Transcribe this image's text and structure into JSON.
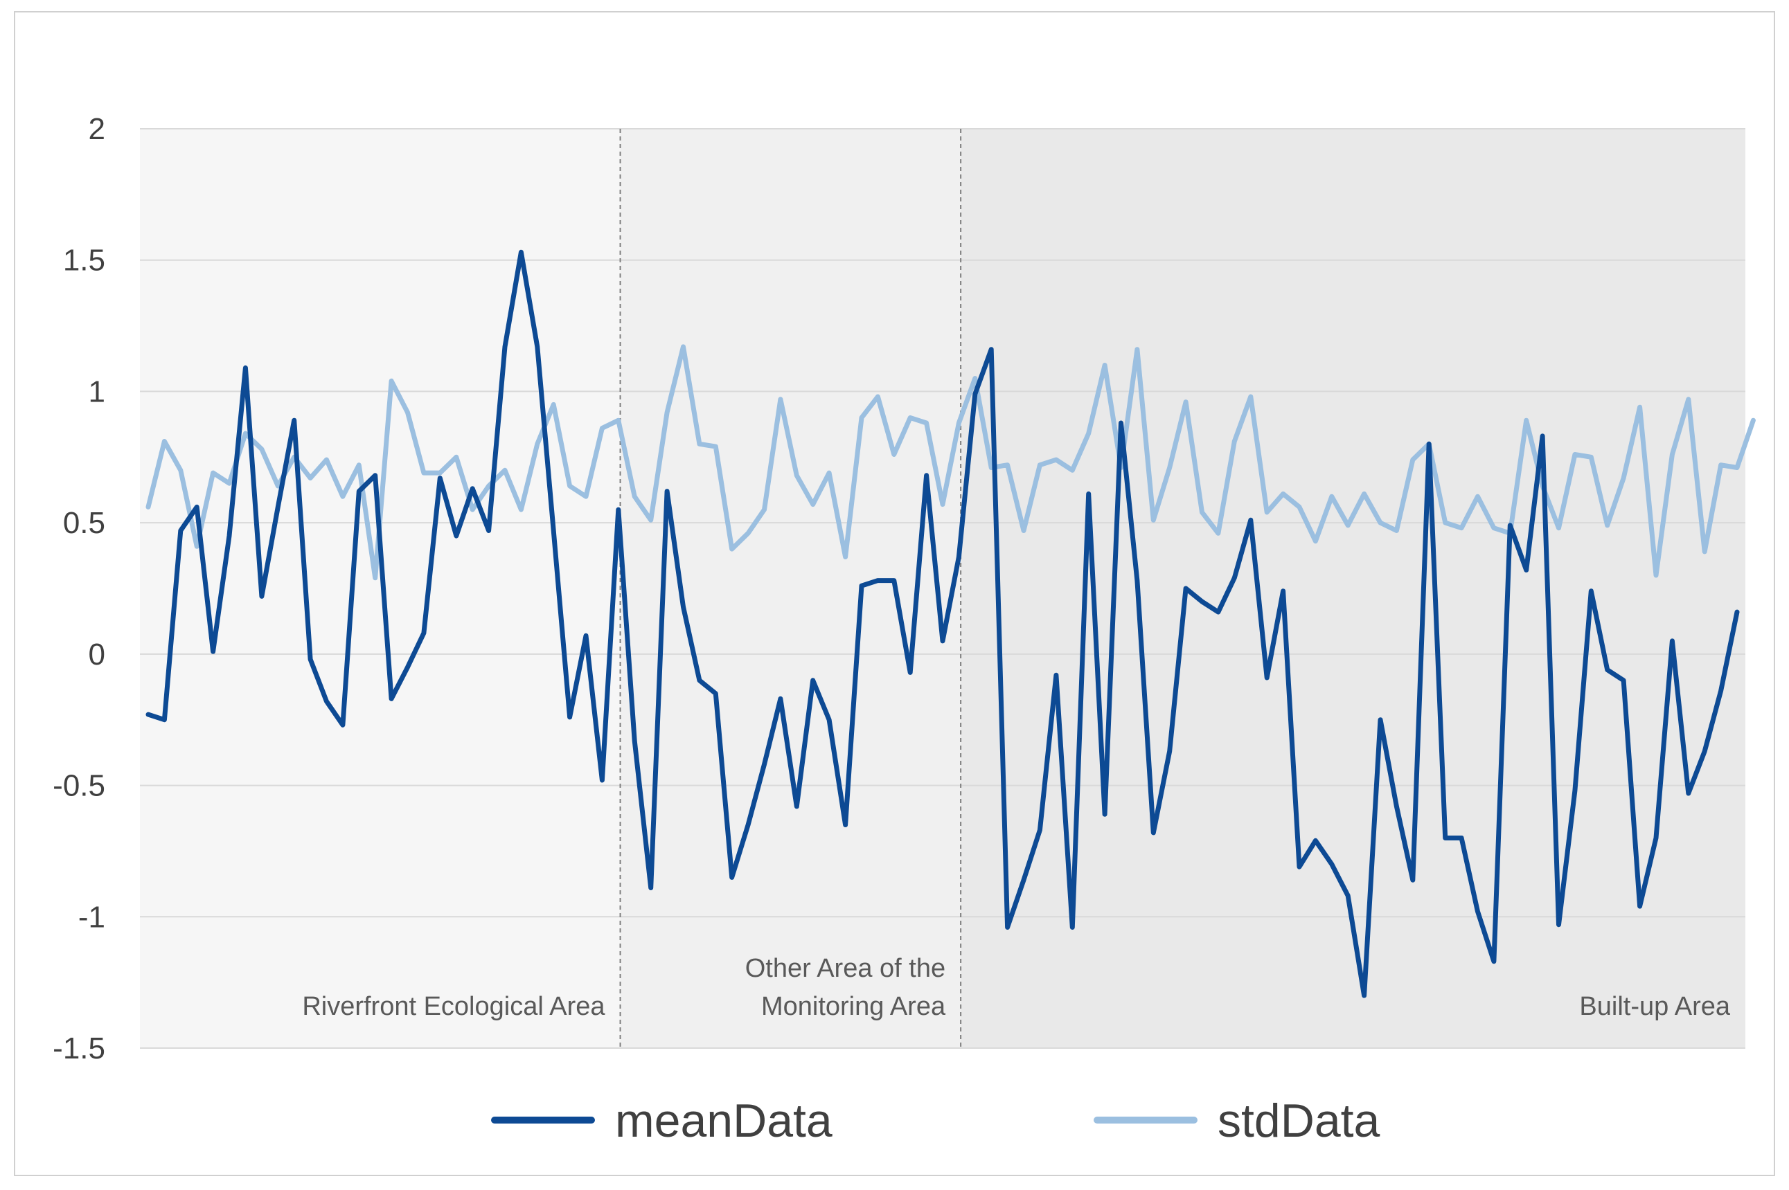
{
  "chart_data": {
    "type": "line",
    "title": "",
    "xlabel": "",
    "ylabel": "",
    "ylim": [
      -1.5,
      2
    ],
    "yticks": [
      2,
      1.5,
      1,
      0.5,
      0,
      -0.5,
      -1,
      -1.5
    ],
    "ytick_labels": [
      "2",
      "1.5",
      "1",
      "0.5",
      "0",
      "-0.5",
      "-1",
      "-1.5"
    ],
    "grid": true,
    "legend": "bottom",
    "regions": [
      {
        "name": "riverfront",
        "label_lines": [
          "Riverfront Ecological Area"
        ],
        "start": 0,
        "end": 29,
        "shade": "#f6f6f6"
      },
      {
        "name": "other",
        "label_lines": [
          "Other Area of the",
          "Monitoring Area"
        ],
        "start": 29,
        "end": 50,
        "shade": "#f0f0f0"
      },
      {
        "name": "builtup",
        "label_lines": [
          "Built-up Area"
        ],
        "start": 50,
        "end": 100,
        "shade": "#e9e9e9"
      }
    ],
    "series": [
      {
        "name": "meanData",
        "color": "#0d4a94",
        "values": [
          -0.23,
          -0.25,
          0.47,
          0.56,
          0.01,
          0.45,
          1.09,
          0.22,
          0.56,
          0.89,
          -0.02,
          -0.18,
          -0.27,
          0.62,
          0.68,
          -0.17,
          -0.05,
          0.08,
          0.67,
          0.45,
          0.63,
          0.47,
          1.17,
          1.53,
          1.17,
          0.47,
          -0.24,
          0.07,
          -0.48,
          0.55,
          -0.33,
          -0.89,
          0.62,
          0.18,
          -0.1,
          -0.15,
          -0.85,
          -0.65,
          -0.42,
          -0.17,
          -0.58,
          -0.1,
          -0.25,
          -0.65,
          0.26,
          0.28,
          0.28,
          -0.07,
          0.68,
          0.05,
          0.37,
          0.99,
          1.16,
          -1.04,
          -0.86,
          -0.67,
          -0.08,
          -1.04,
          0.61,
          -0.61,
          0.88,
          0.28,
          -0.68,
          -0.37,
          0.25,
          0.2,
          0.16,
          0.29,
          0.51,
          -0.09,
          0.24,
          -0.81,
          -0.71,
          -0.8,
          -0.92,
          -1.3,
          -0.25,
          -0.58,
          -0.86,
          0.8,
          -0.7,
          -0.7,
          -0.98,
          -1.17,
          0.49,
          0.32,
          0.83,
          -1.03,
          -0.52,
          0.24,
          -0.06,
          -0.1,
          -0.96,
          -0.7,
          0.05,
          -0.53,
          -0.37,
          -0.14,
          0.16
        ]
      },
      {
        "name": "stdData",
        "color": "#9bbfe0",
        "values": [
          0.56,
          0.81,
          0.7,
          0.41,
          0.69,
          0.65,
          0.84,
          0.78,
          0.64,
          0.75,
          0.67,
          0.74,
          0.6,
          0.72,
          0.29,
          1.04,
          0.92,
          0.69,
          0.69,
          0.75,
          0.55,
          0.64,
          0.7,
          0.55,
          0.8,
          0.95,
          0.64,
          0.6,
          0.86,
          0.89,
          0.6,
          0.51,
          0.92,
          1.17,
          0.8,
          0.79,
          0.4,
          0.46,
          0.55,
          0.97,
          0.68,
          0.57,
          0.69,
          0.37,
          0.9,
          0.98,
          0.76,
          0.9,
          0.88,
          0.57,
          0.88,
          1.05,
          0.71,
          0.72,
          0.47,
          0.72,
          0.74,
          0.7,
          0.84,
          1.1,
          0.71,
          1.16,
          0.51,
          0.71,
          0.96,
          0.54,
          0.46,
          0.81,
          0.98,
          0.54,
          0.61,
          0.56,
          0.43,
          0.6,
          0.49,
          0.61,
          0.5,
          0.47,
          0.74,
          0.8,
          0.5,
          0.48,
          0.6,
          0.48,
          0.46,
          0.89,
          0.64,
          0.48,
          0.76,
          0.75,
          0.49,
          0.67,
          0.94,
          0.3,
          0.76,
          0.97,
          0.39,
          0.72,
          0.71,
          0.89
        ]
      }
    ]
  }
}
